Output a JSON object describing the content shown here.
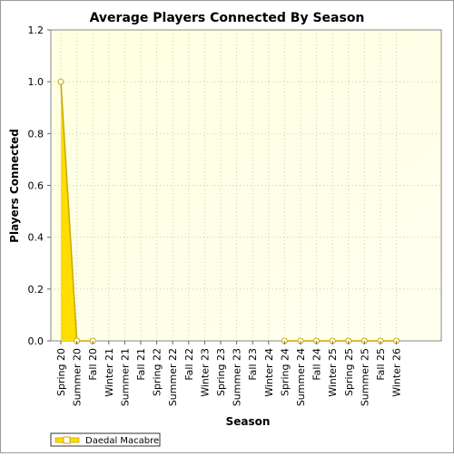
{
  "chart_data": {
    "type": "area",
    "title": "Average Players Connected By Season",
    "xlabel": "Season",
    "ylabel": "Players Connected",
    "categories": [
      "Spring 20",
      "Summer 20",
      "Fall 20",
      "Winter 21",
      "Summer 21",
      "Fall 21",
      "Spring 22",
      "Summer 22",
      "Fall 22",
      "Winter 23",
      "Spring 23",
      "Summer 23",
      "Fall 23",
      "Winter 24",
      "Spring 24",
      "Summer 24",
      "Fall 24",
      "Winter 25",
      "Spring 25",
      "Summer 25",
      "Fall 25",
      "Winter 26"
    ],
    "series": [
      {
        "name": "Daedal Macabre",
        "values": [
          1.0,
          0,
          0,
          null,
          null,
          null,
          null,
          null,
          null,
          null,
          null,
          null,
          null,
          null,
          0,
          0,
          0,
          0,
          0,
          0,
          0,
          0
        ]
      }
    ],
    "ylim": [
      0,
      1.2
    ],
    "yticks": [
      "0.0",
      "0.2",
      "0.4",
      "0.6",
      "0.8",
      "1.0",
      "1.2"
    ],
    "grid": true,
    "legend_position": "bottom-left",
    "colors": {
      "series_fill": "#ffdd00",
      "series_line": "#c8a800",
      "plot_bg_left": "#ffffd8",
      "plot_bg_right": "#fffff0"
    }
  }
}
